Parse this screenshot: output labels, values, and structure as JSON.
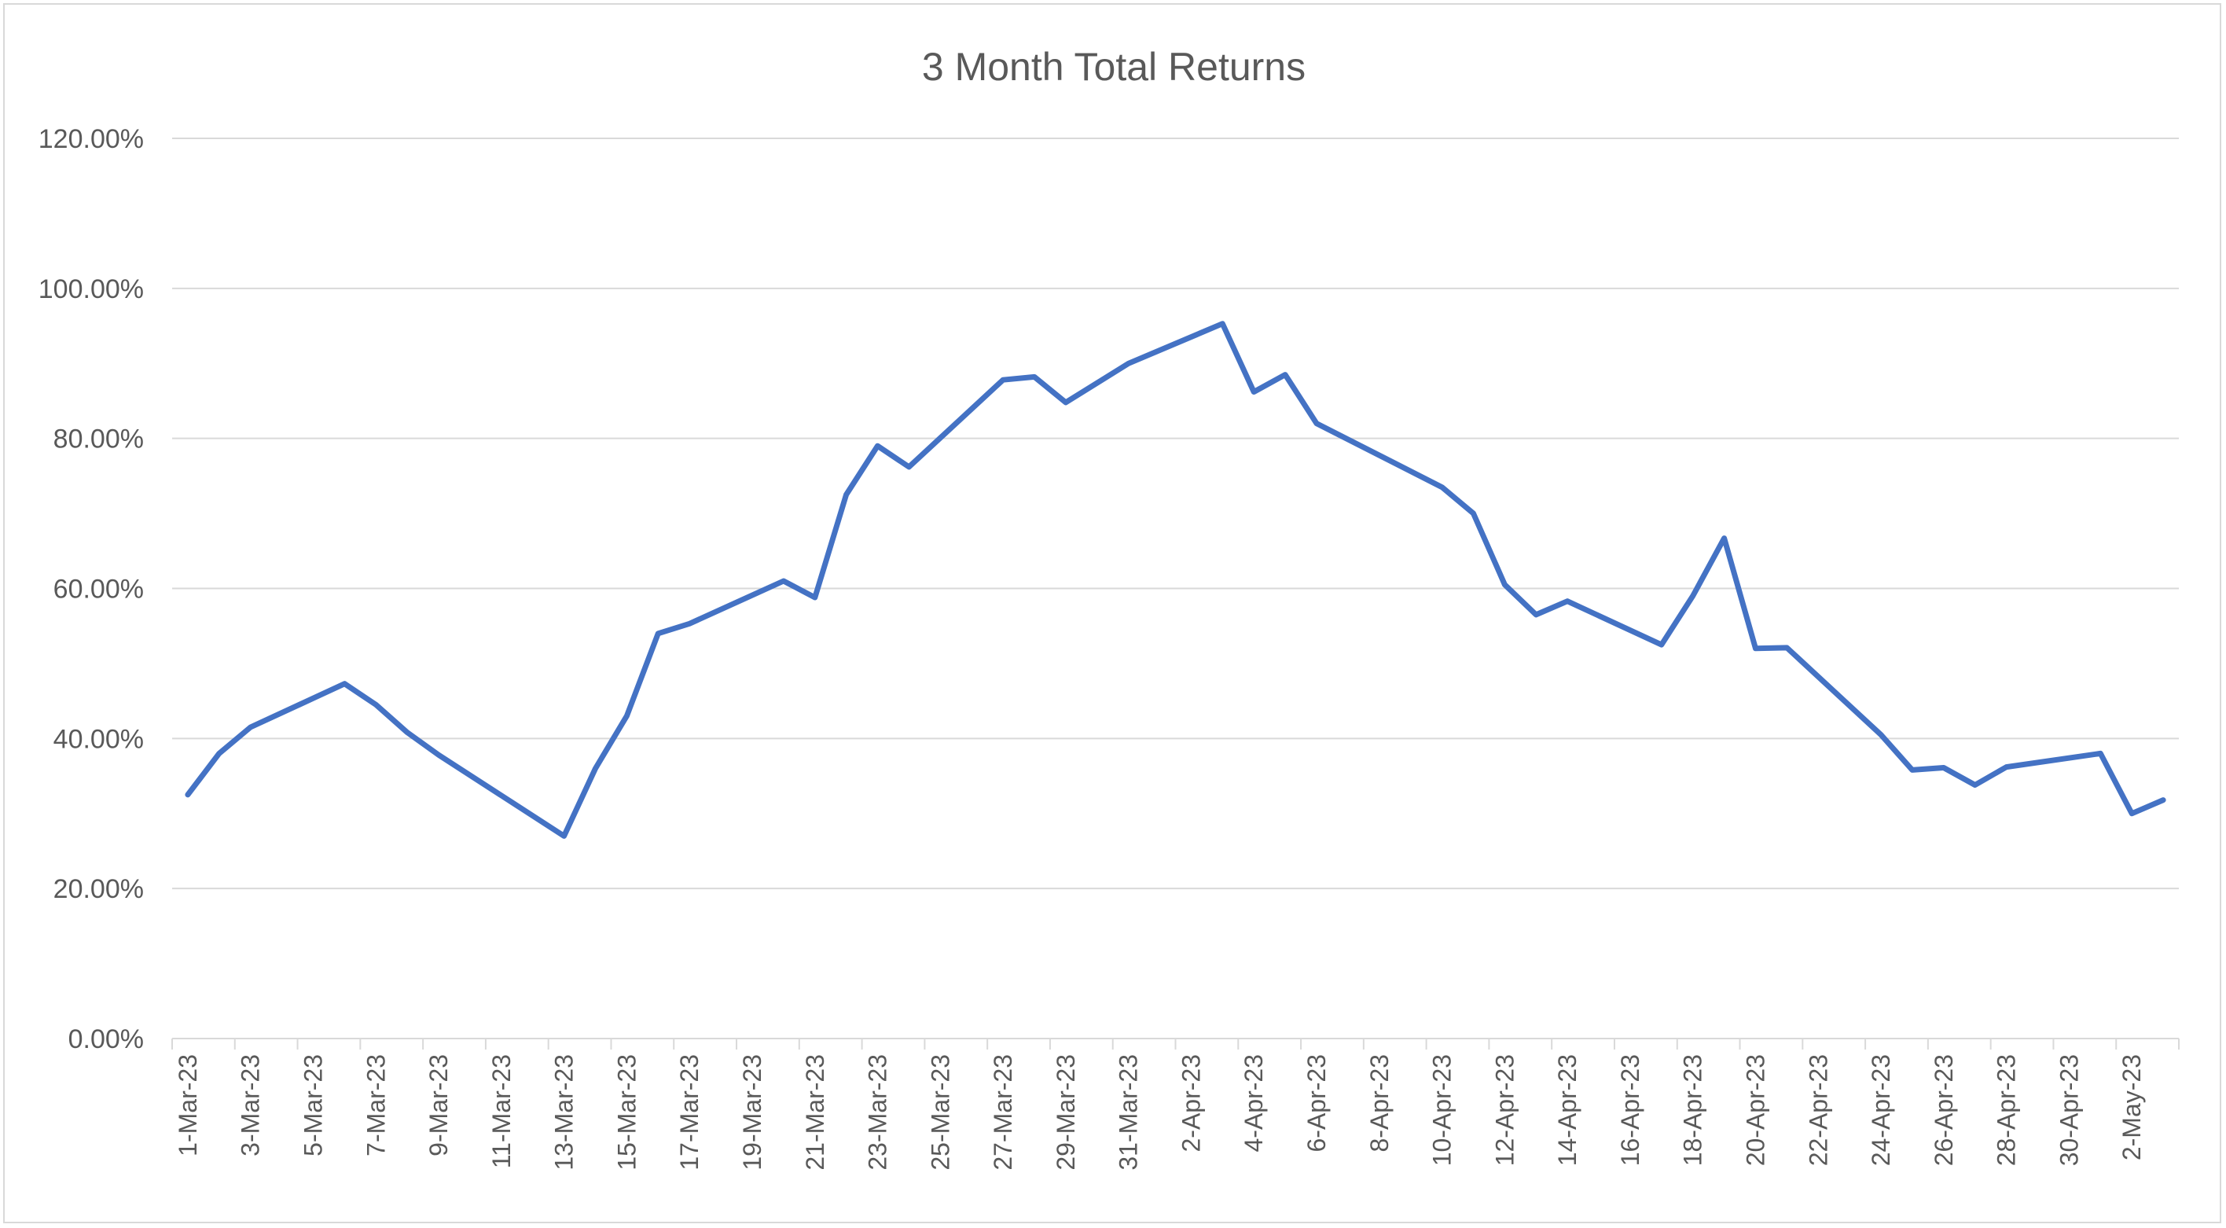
{
  "chart_data": {
    "type": "line",
    "title": "3 Month Total Returns",
    "xlabel": "",
    "ylabel": "",
    "x_start": "1-Mar-23",
    "x_end": "3-May-23",
    "ylim": [
      0,
      120
    ],
    "y_ticks": [
      0,
      20,
      40,
      60,
      80,
      100,
      120
    ],
    "y_tick_labels": [
      "0.00%",
      "20.00%",
      "40.00%",
      "60.00%",
      "80.00%",
      "100.00%",
      "120.00%"
    ],
    "x_tick_labels": [
      "1-Mar-23",
      "3-Mar-23",
      "5-Mar-23",
      "7-Mar-23",
      "9-Mar-23",
      "11-Mar-23",
      "13-Mar-23",
      "15-Mar-23",
      "17-Mar-23",
      "19-Mar-23",
      "21-Mar-23",
      "23-Mar-23",
      "25-Mar-23",
      "27-Mar-23",
      "29-Mar-23",
      "31-Mar-23",
      "2-Apr-23",
      "4-Apr-23",
      "6-Apr-23",
      "8-Apr-23",
      "10-Apr-23",
      "12-Apr-23",
      "14-Apr-23",
      "16-Apr-23",
      "18-Apr-23",
      "20-Apr-23",
      "22-Apr-23",
      "24-Apr-23",
      "26-Apr-23",
      "28-Apr-23",
      "30-Apr-23",
      "2-May-23"
    ],
    "grid": true,
    "legend": "none",
    "series": [
      {
        "color": "#4472c4",
        "points": [
          [
            "1-Mar-23",
            32.5
          ],
          [
            "2-Mar-23",
            38.0
          ],
          [
            "3-Mar-23",
            41.5
          ],
          [
            "6-Mar-23",
            47.3
          ],
          [
            "7-Mar-23",
            44.5
          ],
          [
            "8-Mar-23",
            40.8
          ],
          [
            "9-Mar-23",
            37.8
          ],
          [
            "13-Mar-23",
            27.0
          ],
          [
            "14-Mar-23",
            36.0
          ],
          [
            "15-Mar-23",
            43.0
          ],
          [
            "16-Mar-23",
            54.0
          ],
          [
            "17-Mar-23",
            55.3
          ],
          [
            "20-Mar-23",
            61.0
          ],
          [
            "21-Mar-23",
            58.8
          ],
          [
            "22-Mar-23",
            72.5
          ],
          [
            "23-Mar-23",
            79.0
          ],
          [
            "24-Mar-23",
            76.2
          ],
          [
            "27-Mar-23",
            87.8
          ],
          [
            "28-Mar-23",
            88.2
          ],
          [
            "29-Mar-23",
            84.8
          ],
          [
            "31-Mar-23",
            90.0
          ],
          [
            "3-Apr-23",
            95.3
          ],
          [
            "4-Apr-23",
            86.2
          ],
          [
            "5-Apr-23",
            88.5
          ],
          [
            "6-Apr-23",
            82.0
          ],
          [
            "10-Apr-23",
            73.5
          ],
          [
            "11-Apr-23",
            70.0
          ],
          [
            "12-Apr-23",
            60.5
          ],
          [
            "13-Apr-23",
            56.5
          ],
          [
            "14-Apr-23",
            58.3
          ],
          [
            "17-Apr-23",
            52.5
          ],
          [
            "18-Apr-23",
            59.0
          ],
          [
            "19-Apr-23",
            66.7
          ],
          [
            "20-Apr-23",
            52.0
          ],
          [
            "21-Apr-23",
            52.1
          ],
          [
            "24-Apr-23",
            40.5
          ],
          [
            "25-Apr-23",
            35.8
          ],
          [
            "26-Apr-23",
            36.1
          ],
          [
            "27-Apr-23",
            33.8
          ],
          [
            "28-Apr-23",
            36.2
          ],
          [
            "1-May-23",
            38.0
          ],
          [
            "2-May-23",
            30.0
          ],
          [
            "3-May-23",
            31.8
          ]
        ]
      }
    ]
  }
}
